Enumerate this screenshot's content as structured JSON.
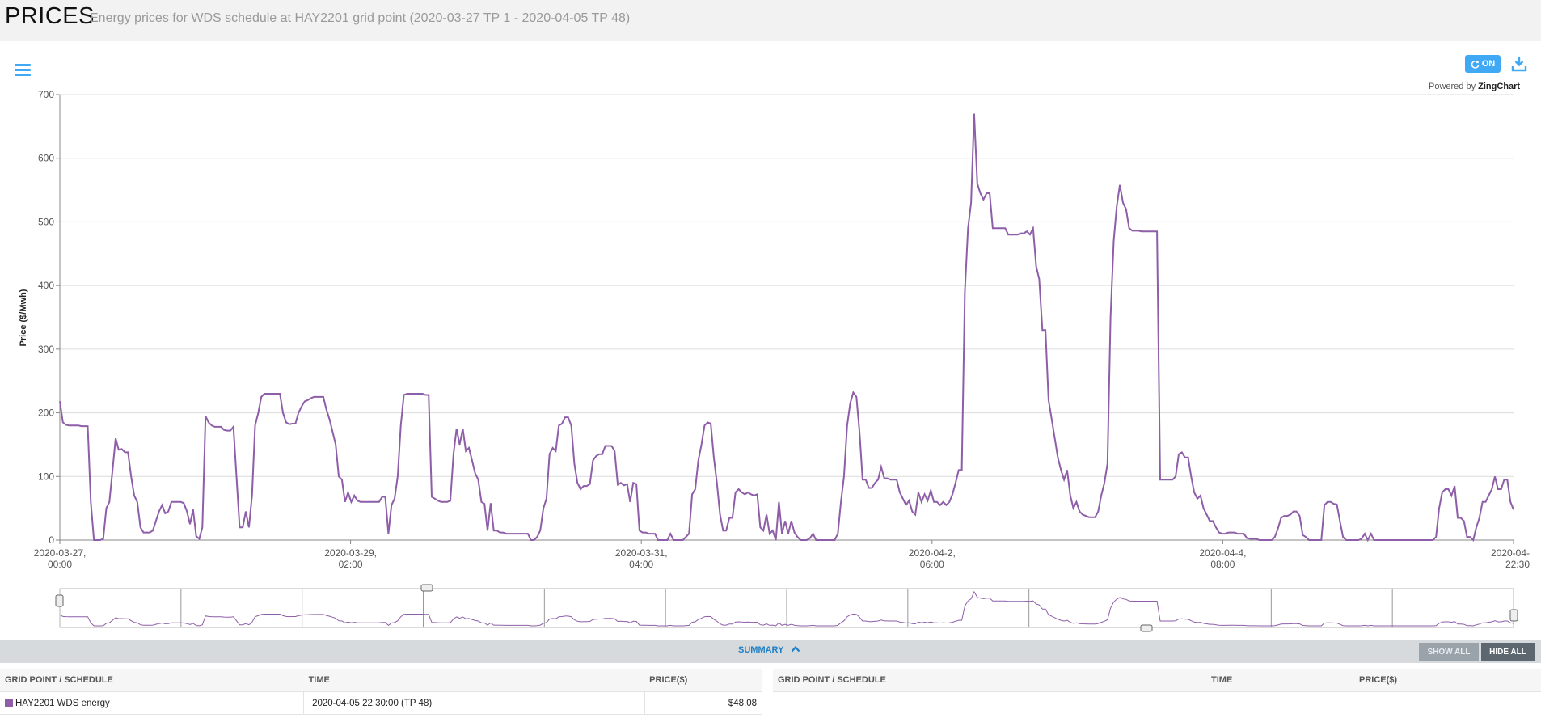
{
  "header": {
    "title": "PRICES",
    "subtitle": "Energy prices for WDS schedule at HAY2201 grid point (2020-03-27 TP 1 - 2020-04-05 TP 48)"
  },
  "toolbar": {
    "refresh_label": "ON",
    "refresh_icon": "refresh-icon",
    "download_icon": "download-icon",
    "menu_icon": "hamburger-menu-icon",
    "powered_by_prefix": "Powered by",
    "powered_by_brand": "ZingChart"
  },
  "colors": {
    "series": "#8e5ea8",
    "accent": "#3fa9f5",
    "summary_link": "#1f7fc4"
  },
  "chart_data": {
    "type": "line",
    "title": "",
    "xlabel": "",
    "ylabel": "Price ($/Mwh)",
    "ylim": [
      0,
      700
    ],
    "yticks": [
      0,
      100,
      200,
      300,
      400,
      500,
      600,
      700
    ],
    "grid": true,
    "x_tick_labels": [
      [
        "2020-03-27,",
        "00:00"
      ],
      [
        "2020-03-29,",
        "02:00"
      ],
      [
        "2020-03-31,",
        "04:00"
      ],
      [
        "2020-04-2,",
        "06:00"
      ],
      [
        "2020-04-4,",
        "08:00"
      ],
      [
        "2020-04-",
        "22:30"
      ]
    ],
    "series": [
      {
        "name": "HAY2201 WDS energy",
        "values": [
          218,
          185,
          181,
          180,
          180,
          180,
          180,
          179,
          179,
          179,
          60,
          0,
          0,
          0,
          2,
          50,
          60,
          110,
          160,
          142,
          143,
          138,
          138,
          100,
          70,
          60,
          20,
          12,
          12,
          12,
          15,
          30,
          45,
          55,
          42,
          45,
          60,
          60,
          60,
          60,
          58,
          45,
          25,
          48,
          6,
          2,
          20,
          195,
          185,
          180,
          178,
          178,
          178,
          173,
          172,
          172,
          178,
          100,
          20,
          20,
          45,
          20,
          70,
          180,
          200,
          225,
          230,
          230,
          230,
          230,
          230,
          230,
          200,
          185,
          182,
          183,
          183,
          200,
          210,
          218,
          220,
          223,
          225,
          225,
          225,
          225,
          205,
          190,
          170,
          150,
          100,
          95,
          60,
          75,
          60,
          70,
          62,
          60,
          60,
          60,
          60,
          60,
          60,
          60,
          68,
          68,
          10,
          55,
          65,
          100,
          180,
          228,
          230,
          230,
          230,
          230,
          230,
          230,
          228,
          228,
          68,
          65,
          62,
          60,
          60,
          60,
          62,
          135,
          175,
          150,
          175,
          140,
          145,
          125,
          105,
          95,
          60,
          57,
          15,
          58,
          15,
          15,
          12,
          12,
          10,
          10,
          10,
          10,
          10,
          10,
          10,
          10,
          0,
          0,
          5,
          15,
          50,
          65,
          135,
          145,
          140,
          180,
          183,
          193,
          193,
          180,
          120,
          90,
          80,
          85,
          85,
          88,
          125,
          132,
          135,
          135,
          148,
          148,
          148,
          140,
          87,
          90,
          86,
          88,
          60,
          90,
          88,
          15,
          12,
          12,
          10,
          10,
          10,
          0,
          0,
          0,
          0,
          10,
          0,
          0,
          0,
          0,
          5,
          10,
          72,
          80,
          125,
          150,
          180,
          185,
          183,
          130,
          90,
          40,
          15,
          15,
          35,
          35,
          75,
          80,
          75,
          72,
          75,
          72,
          70,
          72,
          20,
          15,
          40,
          10,
          15,
          0,
          60,
          10,
          30,
          10,
          30,
          12,
          5,
          0,
          0,
          0,
          3,
          10,
          0,
          0,
          0,
          0,
          0,
          0,
          0,
          10,
          60,
          100,
          180,
          215,
          232,
          225,
          170,
          95,
          95,
          82,
          82,
          90,
          95,
          115,
          97,
          97,
          95,
          95,
          95,
          75,
          65,
          55,
          62,
          45,
          40,
          75,
          60,
          72,
          62,
          78,
          60,
          60,
          55,
          60,
          55,
          60,
          72,
          90,
          110,
          110,
          390,
          490,
          530,
          670,
          560,
          545,
          535,
          545,
          545,
          490,
          490,
          490,
          490,
          490,
          480,
          480,
          480,
          480,
          482,
          482,
          485,
          480,
          490,
          430,
          410,
          330,
          330,
          220,
          190,
          160,
          130,
          110,
          95,
          110,
          70,
          50,
          60,
          45,
          40,
          38,
          36,
          36,
          36,
          45,
          70,
          90,
          120,
          350,
          470,
          525,
          558,
          530,
          520,
          490,
          486,
          486,
          486,
          485,
          485,
          485,
          485,
          485,
          485,
          95,
          95,
          95,
          95,
          95,
          100,
          135,
          138,
          130,
          130,
          100,
          75,
          65,
          70,
          50,
          40,
          30,
          30,
          20,
          12,
          10,
          10,
          12,
          12,
          12,
          10,
          10,
          10,
          3,
          2,
          2,
          2,
          0,
          0,
          0,
          0,
          0,
          5,
          18,
          35,
          38,
          38,
          40,
          45,
          45,
          38,
          8,
          5,
          0,
          0,
          0,
          0,
          0,
          55,
          60,
          60,
          57,
          56,
          30,
          5,
          0,
          0,
          0,
          0,
          0,
          2,
          10,
          0,
          10,
          0,
          0,
          0,
          0,
          0,
          0,
          0,
          0,
          0,
          0,
          0,
          0,
          0,
          0,
          0,
          0,
          0,
          0,
          0,
          0,
          5,
          50,
          75,
          80,
          80,
          70,
          85,
          35,
          35,
          30,
          5,
          5,
          0,
          20,
          35,
          60,
          60,
          70,
          80,
          100,
          80,
          80,
          95,
          95,
          60,
          48
        ]
      }
    ]
  },
  "summary": {
    "toggle_label": "SUMMARY",
    "show_all_label": "SHOW ALL",
    "hide_all_label": "HIDE ALL",
    "left_table": {
      "headers": [
        "GRID POINT / SCHEDULE",
        "TIME",
        "PRICE($)"
      ],
      "rows": [
        {
          "name": "HAY2201 WDS energy",
          "time": "2020-04-05 22:30:00 (TP 48)",
          "price": "$48.08"
        }
      ]
    },
    "right_table": {
      "headers": [
        "GRID POINT / SCHEDULE",
        "TIME",
        "PRICE($)"
      ]
    }
  }
}
